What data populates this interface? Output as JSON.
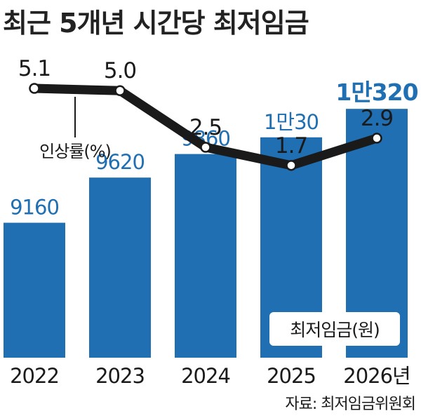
{
  "title": "최근 5개년 시간당 최저임금",
  "source": "자료: 최저임금위원회",
  "colors": {
    "bar": "#1f6fb2",
    "line": "#1a1a1a",
    "marker_fill": "#ffffff"
  },
  "chart_data": {
    "type": "bar",
    "categories": [
      "2022",
      "2023",
      "2024",
      "2025",
      "2026년"
    ],
    "series": [
      {
        "name": "최저임금(원)",
        "values": [
          9160,
          9620,
          9860,
          10030,
          10320
        ],
        "value_labels": [
          "9160",
          "9620",
          "9860",
          "1만30",
          "1만320"
        ]
      }
    ],
    "line_series": {
      "name": "인상률(%)",
      "values": [
        5.1,
        5.0,
        2.5,
        1.7,
        2.9
      ],
      "value_labels": [
        "5.1",
        "5.0",
        "2.5",
        "1.7",
        "2.9"
      ]
    }
  }
}
